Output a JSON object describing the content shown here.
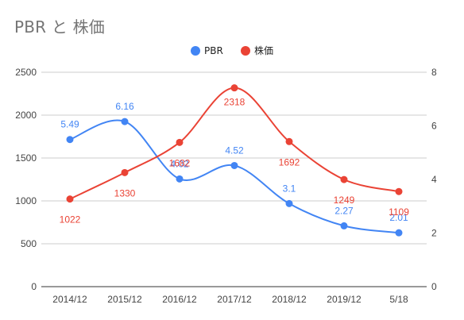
{
  "chart_data": {
    "type": "line",
    "title": "PBR と 株価",
    "categories": [
      "2014/12",
      "2015/12",
      "2016/12",
      "2017/12",
      "2018/12",
      "2019/12",
      "5/18"
    ],
    "series": [
      {
        "name": "PBR",
        "axis": "right",
        "color": "#4285f4",
        "values": [
          5.49,
          6.16,
          4.02,
          4.52,
          3.1,
          2.27,
          2.01
        ],
        "data_labels": [
          "5.49",
          "6.16",
          "4.02",
          "4.52",
          "3.1",
          "2.27",
          "2.01"
        ]
      },
      {
        "name": "株価",
        "axis": "left",
        "color": "#ea4335",
        "values": [
          1022,
          1330,
          1682,
          2318,
          1692,
          1249,
          1109
        ],
        "data_labels": [
          "1022",
          "1330",
          "1682",
          "2318",
          "1692",
          "1249",
          "1109"
        ]
      }
    ],
    "left_axis": {
      "min": 0,
      "max": 2500,
      "ticks": [
        "0",
        "500",
        "1000",
        "1500",
        "2000",
        "2500"
      ]
    },
    "right_axis": {
      "min": 0,
      "max": 8,
      "ticks": [
        "0",
        "2",
        "4",
        "6",
        "8"
      ]
    },
    "grid": true,
    "legend_position": "top-center",
    "curve": "smooth"
  }
}
